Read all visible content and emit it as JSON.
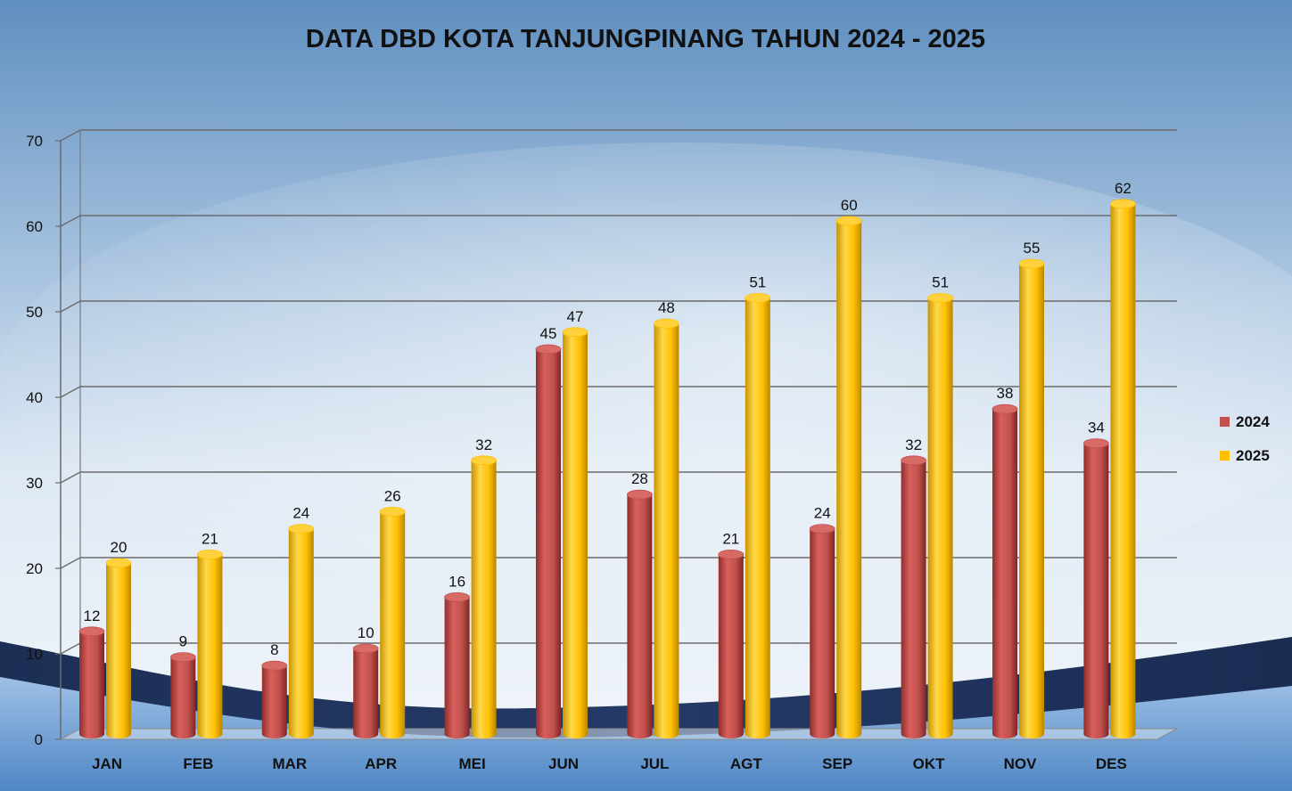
{
  "chart_data": {
    "type": "bar",
    "title": "DATA DBD KOTA TANJUNGPINANG TAHUN 2024 - 2025",
    "xlabel": "",
    "ylabel": "",
    "ylim": [
      0,
      70
    ],
    "yticks": [
      0,
      10,
      20,
      30,
      40,
      50,
      60,
      70
    ],
    "grid": true,
    "legend_position": "right",
    "categories": [
      "JAN",
      "FEB",
      "MAR",
      "APR",
      "MEI",
      "JUN",
      "JUL",
      "AGT",
      "SEP",
      "OKT",
      "NOV",
      "DES"
    ],
    "series": [
      {
        "name": "2024",
        "color": "#c0504d",
        "values": [
          12,
          9,
          8,
          10,
          16,
          45,
          28,
          21,
          24,
          32,
          38,
          34
        ]
      },
      {
        "name": "2025",
        "color": "#ffc000",
        "values": [
          20,
          21,
          24,
          26,
          32,
          47,
          48,
          51,
          60,
          51,
          55,
          62
        ]
      }
    ]
  }
}
